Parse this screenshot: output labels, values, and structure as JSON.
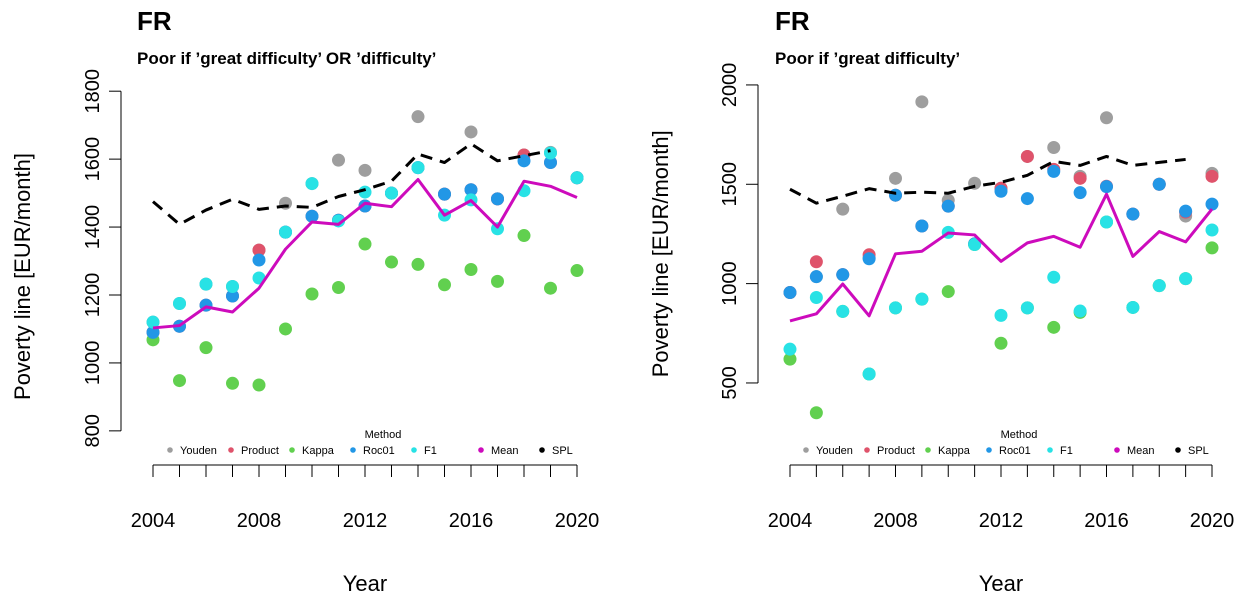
{
  "chart_data": [
    {
      "type": "scatter",
      "title": "FR",
      "subtitle": "Poor if ’great difficulty’ OR ’difficulty’",
      "x_label": "Year",
      "y_label": "Poverty line [EUR/month]",
      "legend_title": "Method",
      "legend": "bottom",
      "x": [
        2004,
        2005,
        2006,
        2007,
        2008,
        2009,
        2010,
        2011,
        2012,
        2013,
        2014,
        2015,
        2016,
        2017,
        2018,
        2019,
        2020
      ],
      "xlim": [
        2003.5,
        2020.5
      ],
      "xticks": [
        2004,
        2008,
        2012,
        2016,
        2020
      ],
      "ylim": [
        620,
        1830
      ],
      "yticks": [
        800,
        1000,
        1200,
        1400,
        1600,
        1800
      ],
      "series": [
        {
          "name": "Youden",
          "color": "#9e9e9e",
          "style": "points",
          "values": [
            1120,
            1175,
            1232,
            1225,
            1332,
            1470,
            1528,
            1597,
            1567,
            1500,
            1725,
            1497,
            1680,
            1483,
            1612,
            1620,
            1545
          ]
        },
        {
          "name": "Product",
          "color": "#df536b",
          "style": "points",
          "values": [
            1090,
            1108,
            1170,
            1197,
            1332,
            1385,
            1432,
            1420,
            1462,
            1500,
            1575,
            1497,
            1510,
            1483,
            1612,
            1590,
            1545
          ]
        },
        {
          "name": "Kappa",
          "color": "#61d04f",
          "style": "points",
          "values": [
            1068,
            948,
            1045,
            940,
            935,
            1100,
            1203,
            1222,
            1350,
            1297,
            1290,
            1230,
            1275,
            1240,
            1375,
            1220,
            1272
          ]
        },
        {
          "name": "Roc01",
          "color": "#2297e6",
          "style": "points",
          "values": [
            1090,
            1108,
            1170,
            1197,
            1303,
            1385,
            1432,
            1420,
            1462,
            1500,
            1575,
            1497,
            1510,
            1483,
            1595,
            1590,
            1545
          ]
        },
        {
          "name": "F1",
          "color": "#28e2e5",
          "style": "points",
          "values": [
            1120,
            1175,
            1232,
            1225,
            1250,
            1385,
            1528,
            1418,
            1503,
            1500,
            1575,
            1435,
            1480,
            1395,
            1507,
            1618,
            1545
          ]
        },
        {
          "name": "Mean",
          "color": "#cd0bbc",
          "style": "line",
          "values": [
            1103,
            1110,
            1165,
            1150,
            1220,
            1335,
            1415,
            1408,
            1470,
            1460,
            1540,
            1435,
            1478,
            1400,
            1535,
            1520,
            1487
          ]
        },
        {
          "name": "SPL",
          "color": "#000000",
          "style": "dashed",
          "values": [
            1475,
            1408,
            1450,
            1482,
            1452,
            1462,
            1458,
            1490,
            1510,
            1535,
            1615,
            1590,
            1645,
            1595,
            1610,
            1625,
            null
          ]
        }
      ]
    },
    {
      "type": "scatter",
      "title": "FR",
      "subtitle": "Poor if ’great difficulty’",
      "x_label": "Year",
      "y_label": "Poverty line [EUR/month]",
      "legend_title": "Method",
      "legend": "bottom",
      "x": [
        2004,
        2005,
        2006,
        2007,
        2008,
        2009,
        2010,
        2011,
        2012,
        2013,
        2014,
        2015,
        2016,
        2017,
        2018,
        2019,
        2020
      ],
      "xlim": [
        2003.5,
        2020.5
      ],
      "xticks": [
        2004,
        2008,
        2012,
        2016,
        2020
      ],
      "ylim": [
        150,
        2050
      ],
      "yticks": [
        500,
        1000,
        1500,
        2000
      ],
      "series": [
        {
          "name": "Youden",
          "color": "#9e9e9e",
          "style": "points",
          "values": [
            955,
            1035,
            1375,
            1130,
            1530,
            1915,
            1420,
            1505,
            1480,
            1640,
            1685,
            1540,
            1835,
            1350,
            1500,
            1340,
            1555
          ]
        },
        {
          "name": "Product",
          "color": "#df536b",
          "style": "points",
          "values": [
            955,
            1110,
            1045,
            1145,
            1445,
            1290,
            1390,
            1200,
            1480,
            1640,
            1575,
            1530,
            1490,
            1350,
            1500,
            1360,
            1540
          ]
        },
        {
          "name": "Kappa",
          "color": "#61d04f",
          "style": "points",
          "values": [
            620,
            350,
            860,
            545,
            878,
            922,
            960,
            1197,
            700,
            878,
            780,
            855,
            1310,
            880,
            990,
            1025,
            1180
          ]
        },
        {
          "name": "Roc01",
          "color": "#2297e6",
          "style": "points",
          "values": [
            955,
            1035,
            1045,
            1125,
            1445,
            1290,
            1390,
            1200,
            1465,
            1428,
            1565,
            1458,
            1488,
            1350,
            1500,
            1365,
            1400
          ]
        },
        {
          "name": "F1",
          "color": "#28e2e5",
          "style": "points",
          "values": [
            670,
            930,
            860,
            545,
            878,
            922,
            1258,
            1197,
            840,
            878,
            1032,
            862,
            1310,
            880,
            990,
            1025,
            1270
          ]
        },
        {
          "name": "Mean",
          "color": "#cd0bbc",
          "style": "line",
          "values": [
            812,
            848,
            998,
            838,
            1150,
            1163,
            1255,
            1245,
            1112,
            1205,
            1238,
            1183,
            1450,
            1137,
            1262,
            1210,
            1375
          ]
        },
        {
          "name": "SPL",
          "color": "#000000",
          "style": "dashed",
          "values": [
            1475,
            1405,
            1440,
            1478,
            1455,
            1460,
            1455,
            1490,
            1510,
            1545,
            1615,
            1595,
            1640,
            1595,
            1610,
            1625,
            null
          ]
        }
      ]
    }
  ]
}
